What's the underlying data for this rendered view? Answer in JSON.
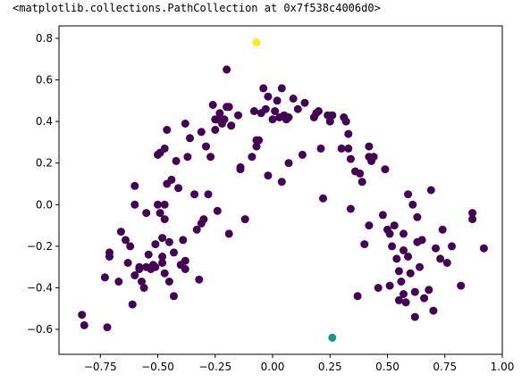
{
  "output_repr": "<matplotlib.collections.PathCollection at 0x7f538c4006d0>",
  "chart_data": {
    "type": "scatter",
    "title": "",
    "xlabel": "",
    "ylabel": "",
    "xlim": [
      -0.93,
      1.0
    ],
    "ylim": [
      -0.72,
      0.86
    ],
    "x_ticks": [
      -0.75,
      -0.5,
      -0.25,
      0.0,
      0.25,
      0.5,
      0.75,
      1.0
    ],
    "x_tick_labels": [
      "−0.75",
      "−0.50",
      "−0.25",
      "0.00",
      "0.25",
      "0.50",
      "0.75",
      "1.00"
    ],
    "y_ticks": [
      -0.6,
      -0.4,
      -0.2,
      0.0,
      0.2,
      0.4,
      0.6,
      0.8
    ],
    "y_tick_labels": [
      "−0.6",
      "−0.4",
      "−0.2",
      "0.0",
      "0.2",
      "0.4",
      "0.6",
      "0.8"
    ],
    "grid": false,
    "legend": "none",
    "colors": {
      "cluster_0": "#440154",
      "cluster_1": "#21918c",
      "cluster_2": "#fde725"
    },
    "series": [
      {
        "color_key": "cluster_2",
        "points": [
          [
            -0.07,
            0.78
          ]
        ]
      },
      {
        "color_key": "cluster_1",
        "points": [
          [
            0.26,
            -0.64
          ]
        ]
      },
      {
        "color_key": "cluster_0",
        "points": [
          [
            -0.83,
            -0.53
          ],
          [
            -0.82,
            -0.58
          ],
          [
            -0.73,
            -0.35
          ],
          [
            -0.72,
            -0.59
          ],
          [
            -0.71,
            -0.25
          ],
          [
            -0.71,
            -0.23
          ],
          [
            -0.67,
            -0.37
          ],
          [
            -0.66,
            -0.13
          ],
          [
            -0.64,
            -0.17
          ],
          [
            -0.63,
            -0.28
          ],
          [
            -0.62,
            -0.2
          ],
          [
            -0.61,
            -0.48
          ],
          [
            -0.6,
            -0.34
          ],
          [
            -0.6,
            0.09
          ],
          [
            -0.6,
            0.0
          ],
          [
            -0.58,
            -0.3
          ],
          [
            -0.58,
            -0.31
          ],
          [
            -0.57,
            -0.37
          ],
          [
            -0.56,
            -0.4
          ],
          [
            -0.55,
            -0.3
          ],
          [
            -0.55,
            -0.04
          ],
          [
            -0.54,
            -0.24
          ],
          [
            -0.53,
            -0.31
          ],
          [
            -0.52,
            -0.29
          ],
          [
            -0.51,
            -0.3
          ],
          [
            -0.51,
            -0.19
          ],
          [
            -0.5,
            0.24
          ],
          [
            -0.5,
            0.0
          ],
          [
            -0.49,
            -0.04
          ],
          [
            -0.49,
            0.25
          ],
          [
            -0.48,
            -0.25
          ],
          [
            -0.48,
            -0.16
          ],
          [
            -0.48,
            -0.28
          ],
          [
            -0.47,
            -0.0
          ],
          [
            -0.47,
            0.27
          ],
          [
            -0.47,
            -0.07
          ],
          [
            -0.47,
            -0.33
          ],
          [
            -0.46,
            0.36
          ],
          [
            -0.46,
            0.1
          ],
          [
            -0.45,
            -0.37
          ],
          [
            -0.45,
            -0.18
          ],
          [
            -0.44,
            0.12
          ],
          [
            -0.43,
            -0.44
          ],
          [
            -0.43,
            -0.23
          ],
          [
            -0.42,
            0.21
          ],
          [
            -0.41,
            0.08
          ],
          [
            -0.4,
            -0.29
          ],
          [
            -0.39,
            -0.17
          ],
          [
            -0.38,
            0.39
          ],
          [
            -0.38,
            -0.27
          ],
          [
            -0.38,
            -0.31
          ],
          [
            -0.37,
            0.23
          ],
          [
            -0.36,
            0.32
          ],
          [
            -0.34,
            0.05
          ],
          [
            -0.33,
            -0.12
          ],
          [
            -0.32,
            -0.36
          ],
          [
            -0.31,
            0.35
          ],
          [
            -0.31,
            -0.09
          ],
          [
            -0.3,
            -0.07
          ],
          [
            -0.29,
            0.28
          ],
          [
            -0.28,
            0.05
          ],
          [
            -0.27,
            0.23
          ],
          [
            -0.26,
            0.48
          ],
          [
            -0.25,
            0.36
          ],
          [
            -0.25,
            0.41
          ],
          [
            -0.24,
            0.41
          ],
          [
            -0.24,
            -0.03
          ],
          [
            -0.23,
            0.44
          ],
          [
            -0.22,
            0.39
          ],
          [
            -0.21,
            0.41
          ],
          [
            -0.2,
            0.65
          ],
          [
            -0.2,
            0.47
          ],
          [
            -0.19,
            -0.14
          ],
          [
            -0.19,
            0.47
          ],
          [
            -0.18,
            0.38
          ],
          [
            -0.18,
            0.38
          ],
          [
            -0.15,
            0.43
          ],
          [
            -0.14,
            0.17
          ],
          [
            -0.14,
            0.18
          ],
          [
            -0.12,
            -0.07
          ],
          [
            -0.09,
            0.23
          ],
          [
            -0.08,
            0.45
          ],
          [
            -0.07,
            0.31
          ],
          [
            -0.07,
            0.28
          ],
          [
            -0.06,
            0.31
          ],
          [
            -0.05,
            0.44
          ],
          [
            -0.04,
            0.56
          ],
          [
            -0.03,
            0.46
          ],
          [
            -0.02,
            0.14
          ],
          [
            -0.02,
            0.52
          ],
          [
            0.0,
            0.41
          ],
          [
            0.01,
            0.45
          ],
          [
            0.02,
            0.5
          ],
          [
            0.03,
            0.42
          ],
          [
            0.04,
            0.11
          ],
          [
            0.04,
            0.56
          ],
          [
            0.05,
            0.43
          ],
          [
            0.06,
            0.41
          ],
          [
            0.07,
            0.2
          ],
          [
            0.07,
            0.42
          ],
          [
            0.09,
            0.51
          ],
          [
            0.11,
            0.46
          ],
          [
            0.13,
            0.24
          ],
          [
            0.14,
            0.49
          ],
          [
            0.18,
            0.42
          ],
          [
            0.19,
            0.44
          ],
          [
            0.2,
            0.45
          ],
          [
            0.21,
            0.27
          ],
          [
            0.22,
            0.03
          ],
          [
            0.24,
            0.43
          ],
          [
            0.25,
            0.4
          ],
          [
            0.26,
            0.43
          ],
          [
            0.3,
            0.27
          ],
          [
            0.31,
            0.42
          ],
          [
            0.32,
            0.4
          ],
          [
            0.33,
            0.34
          ],
          [
            0.33,
            0.27
          ],
          [
            0.34,
            0.22
          ],
          [
            0.34,
            -0.02
          ],
          [
            0.36,
            0.16
          ],
          [
            0.37,
            -0.44
          ],
          [
            0.38,
            0.15
          ],
          [
            0.39,
            0.11
          ],
          [
            0.4,
            -0.19
          ],
          [
            0.42,
            0.28
          ],
          [
            0.42,
            0.23
          ],
          [
            0.42,
            -0.1
          ],
          [
            0.43,
            0.21
          ],
          [
            0.44,
            0.23
          ],
          [
            0.46,
            -0.4
          ],
          [
            0.48,
            -0.05
          ],
          [
            0.49,
            0.17
          ],
          [
            0.5,
            -0.12
          ],
          [
            0.51,
            -0.39
          ],
          [
            0.51,
            -0.14
          ],
          [
            0.52,
            -0.2
          ],
          [
            0.53,
            -0.1
          ],
          [
            0.54,
            -0.26
          ],
          [
            0.55,
            -0.32
          ],
          [
            0.55,
            -0.46
          ],
          [
            0.56,
            -0.37
          ],
          [
            0.57,
            -0.43
          ],
          [
            0.57,
            -0.22
          ],
          [
            0.57,
            -0.14
          ],
          [
            0.58,
            -0.47
          ],
          [
            0.59,
            -0.25
          ],
          [
            0.59,
            0.05
          ],
          [
            0.6,
            -0.33
          ],
          [
            0.61,
            0.0
          ],
          [
            0.62,
            -0.54
          ],
          [
            0.62,
            -0.42
          ],
          [
            0.63,
            -0.06
          ],
          [
            0.63,
            -0.18
          ],
          [
            0.64,
            -0.3
          ],
          [
            0.65,
            -0.17
          ],
          [
            0.66,
            -0.45
          ],
          [
            0.68,
            -0.41
          ],
          [
            0.69,
            0.07
          ],
          [
            0.7,
            -0.51
          ],
          [
            0.71,
            -0.21
          ],
          [
            0.73,
            -0.26
          ],
          [
            0.74,
            -0.12
          ],
          [
            0.76,
            -0.28
          ],
          [
            0.78,
            -0.2
          ],
          [
            0.82,
            -0.39
          ],
          [
            0.87,
            -0.07
          ],
          [
            0.87,
            -0.04
          ],
          [
            0.92,
            -0.21
          ]
        ]
      }
    ]
  }
}
